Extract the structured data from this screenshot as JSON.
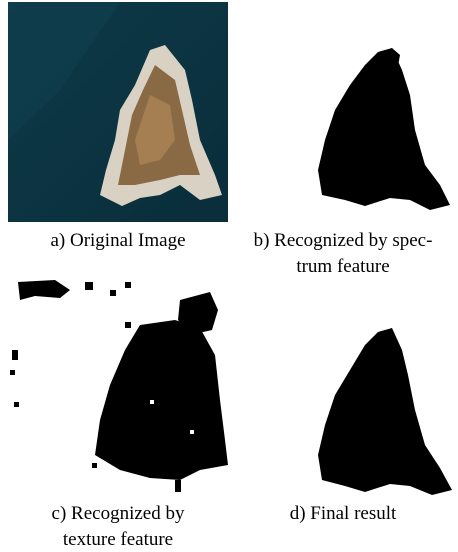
{
  "figure": {
    "panels": [
      {
        "caption": [
          "a) Original Image"
        ]
      },
      {
        "caption": [
          "b) Recognized by spec-",
          "trum feature"
        ]
      },
      {
        "caption": [
          "c)  Recognized by",
          "texture feature"
        ]
      },
      {
        "caption": [
          "d) Final result"
        ]
      }
    ]
  }
}
